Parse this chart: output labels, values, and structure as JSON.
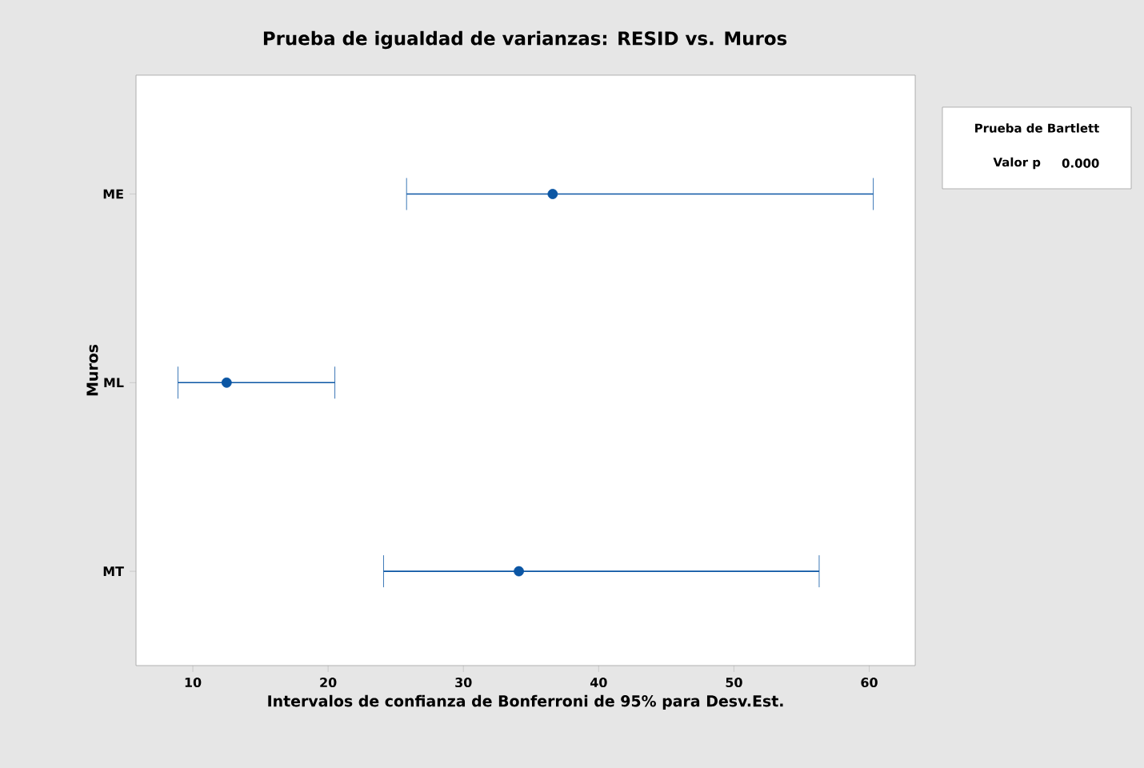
{
  "chart_data": {
    "type": "scatter",
    "orientation": "horizontal",
    "title": "Prueba de igualdad de varianzas: RESID vs. Muros",
    "xlabel": "Intervalos de confianza de Bonferroni de 95% para Desv.Est.",
    "ylabel": "Muros",
    "categories": [
      "ME",
      "ML",
      "MT"
    ],
    "values": [
      36.6,
      12.5,
      34.1
    ],
    "errors": [
      [
        25.8,
        60.3
      ],
      [
        8.9,
        20.5
      ],
      [
        24.1,
        56.3
      ]
    ],
    "color": "#0b56a4",
    "marker": "circle",
    "xlim": [
      5.8,
      63.4
    ],
    "xticks": [
      10,
      20,
      30,
      40,
      50,
      60
    ],
    "annotations": [
      "Prueba de Bartlett",
      "Valor p",
      "0.000"
    ]
  }
}
